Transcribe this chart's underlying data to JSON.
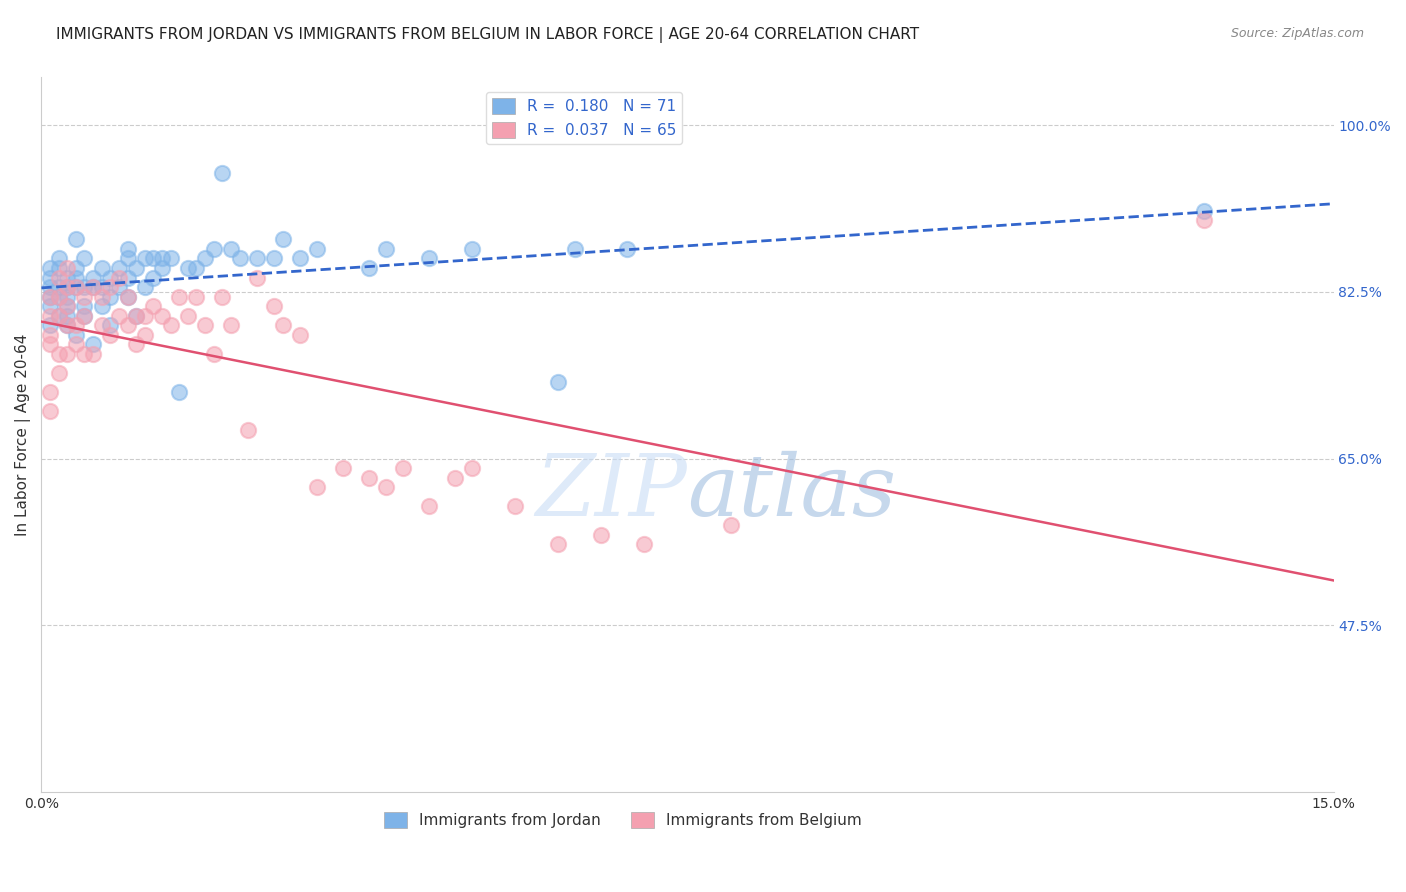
{
  "title": "IMMIGRANTS FROM JORDAN VS IMMIGRANTS FROM BELGIUM IN LABOR FORCE | AGE 20-64 CORRELATION CHART",
  "source": "Source: ZipAtlas.com",
  "ylabel": "In Labor Force | Age 20-64",
  "xlim": [
    0.0,
    0.15
  ],
  "ylim": [
    0.3,
    1.05
  ],
  "yticks": [
    0.475,
    0.65,
    0.825,
    1.0
  ],
  "ytick_labels": [
    "47.5%",
    "65.0%",
    "82.5%",
    "100.0%"
  ],
  "xticks": [
    0.0,
    0.025,
    0.05,
    0.075,
    0.1,
    0.125,
    0.15
  ],
  "xtick_labels": [
    "0.0%",
    "",
    "",
    "",
    "",
    "",
    "15.0%"
  ],
  "jordan_color": "#7EB3E8",
  "belgium_color": "#F4A0B0",
  "jordan_R": 0.18,
  "jordan_N": 71,
  "belgium_R": 0.037,
  "belgium_N": 65,
  "jordan_line_color": "#3366CC",
  "belgium_line_color": "#E05070",
  "jordan_x": [
    0.001,
    0.001,
    0.001,
    0.001,
    0.001,
    0.001,
    0.002,
    0.002,
    0.002,
    0.002,
    0.002,
    0.003,
    0.003,
    0.003,
    0.003,
    0.003,
    0.003,
    0.004,
    0.004,
    0.004,
    0.004,
    0.004,
    0.005,
    0.005,
    0.005,
    0.005,
    0.006,
    0.006,
    0.006,
    0.007,
    0.007,
    0.007,
    0.008,
    0.008,
    0.008,
    0.009,
    0.009,
    0.01,
    0.01,
    0.01,
    0.01,
    0.011,
    0.011,
    0.012,
    0.012,
    0.013,
    0.013,
    0.014,
    0.014,
    0.015,
    0.016,
    0.017,
    0.018,
    0.019,
    0.02,
    0.021,
    0.022,
    0.023,
    0.025,
    0.027,
    0.028,
    0.03,
    0.032,
    0.038,
    0.04,
    0.045,
    0.05,
    0.06,
    0.062,
    0.068,
    0.135
  ],
  "jordan_y": [
    0.83,
    0.84,
    0.82,
    0.85,
    0.81,
    0.79,
    0.86,
    0.85,
    0.83,
    0.82,
    0.8,
    0.84,
    0.83,
    0.82,
    0.81,
    0.8,
    0.79,
    0.88,
    0.85,
    0.84,
    0.83,
    0.78,
    0.86,
    0.83,
    0.81,
    0.8,
    0.84,
    0.83,
    0.77,
    0.85,
    0.83,
    0.81,
    0.84,
    0.82,
    0.79,
    0.85,
    0.83,
    0.87,
    0.86,
    0.84,
    0.82,
    0.85,
    0.8,
    0.86,
    0.83,
    0.86,
    0.84,
    0.85,
    0.86,
    0.86,
    0.72,
    0.85,
    0.85,
    0.86,
    0.87,
    0.95,
    0.87,
    0.86,
    0.86,
    0.86,
    0.88,
    0.86,
    0.87,
    0.85,
    0.87,
    0.86,
    0.87,
    0.73,
    0.87,
    0.87,
    0.91
  ],
  "belgium_x": [
    0.001,
    0.001,
    0.001,
    0.001,
    0.001,
    0.001,
    0.002,
    0.002,
    0.002,
    0.002,
    0.002,
    0.003,
    0.003,
    0.003,
    0.003,
    0.003,
    0.004,
    0.004,
    0.004,
    0.005,
    0.005,
    0.005,
    0.006,
    0.006,
    0.007,
    0.007,
    0.008,
    0.008,
    0.009,
    0.009,
    0.01,
    0.01,
    0.011,
    0.011,
    0.012,
    0.012,
    0.013,
    0.014,
    0.015,
    0.016,
    0.017,
    0.018,
    0.019,
    0.02,
    0.021,
    0.022,
    0.024,
    0.025,
    0.027,
    0.028,
    0.03,
    0.032,
    0.035,
    0.038,
    0.04,
    0.042,
    0.045,
    0.048,
    0.05,
    0.055,
    0.06,
    0.065,
    0.07,
    0.08,
    0.135
  ],
  "belgium_y": [
    0.82,
    0.8,
    0.78,
    0.77,
    0.72,
    0.7,
    0.84,
    0.82,
    0.8,
    0.76,
    0.74,
    0.85,
    0.83,
    0.81,
    0.79,
    0.76,
    0.83,
    0.79,
    0.77,
    0.82,
    0.8,
    0.76,
    0.83,
    0.76,
    0.82,
    0.79,
    0.83,
    0.78,
    0.84,
    0.8,
    0.82,
    0.79,
    0.8,
    0.77,
    0.8,
    0.78,
    0.81,
    0.8,
    0.79,
    0.82,
    0.8,
    0.82,
    0.79,
    0.76,
    0.82,
    0.79,
    0.68,
    0.84,
    0.81,
    0.79,
    0.78,
    0.62,
    0.64,
    0.63,
    0.62,
    0.64,
    0.6,
    0.63,
    0.64,
    0.6,
    0.56,
    0.57,
    0.56,
    0.58,
    0.9
  ],
  "watermark_zip": "ZIP",
  "watermark_atlas": "atlas",
  "background_color": "#FFFFFF",
  "grid_color": "#CCCCCC",
  "title_fontsize": 11,
  "axis_label_fontsize": 11,
  "tick_fontsize": 10,
  "legend_fontsize": 11
}
